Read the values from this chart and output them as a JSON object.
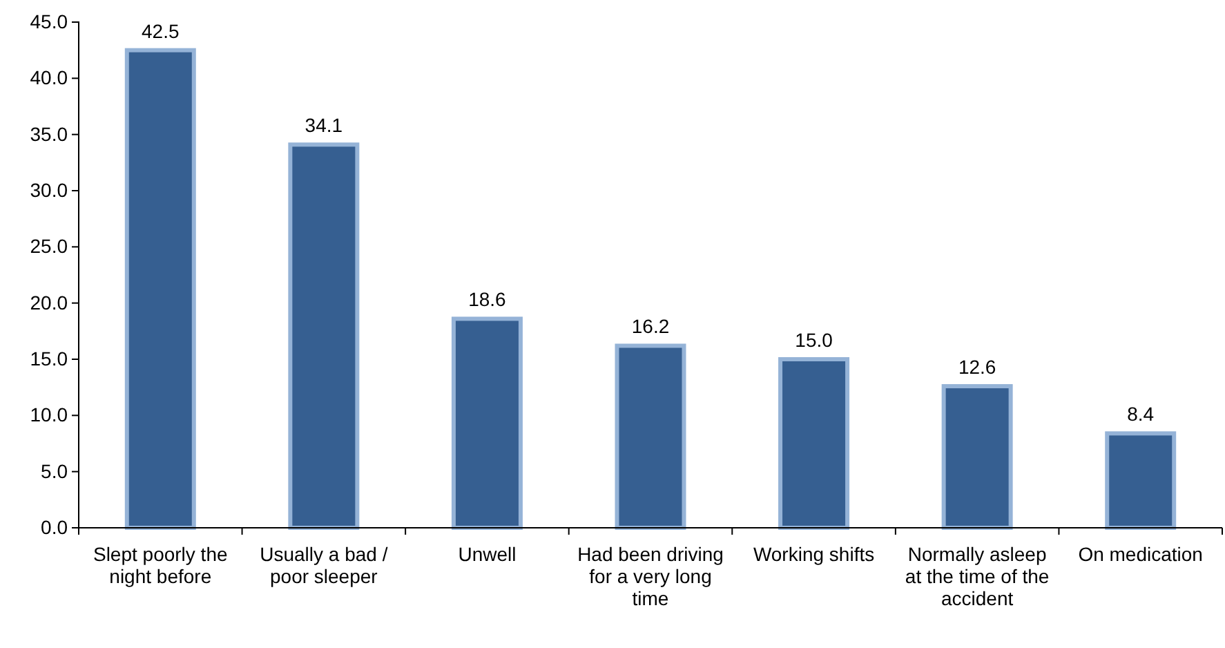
{
  "chart_data": {
    "type": "bar",
    "categories": [
      "Slept poorly the night before",
      "Usually a bad / poor sleeper",
      "Unwell",
      "Had been driving for a very long time",
      "Working shifts",
      "Normally asleep at the time of the accident",
      "On medication"
    ],
    "values": [
      42.5,
      34.1,
      18.6,
      16.2,
      15.0,
      12.6,
      8.4
    ],
    "value_labels": [
      "42.5",
      "34.1",
      "18.6",
      "16.2",
      "15.0",
      "12.6",
      "8.4"
    ],
    "color": "#365f91",
    "ylim": [
      0,
      45
    ],
    "yticks": [
      {
        "value": 0,
        "label": "0.0"
      },
      {
        "value": 5,
        "label": "5.0"
      },
      {
        "value": 10,
        "label": "10.0"
      },
      {
        "value": 15,
        "label": "15.0"
      },
      {
        "value": 20,
        "label": "20.0"
      },
      {
        "value": 25,
        "label": "25.0"
      },
      {
        "value": 30,
        "label": "30.0"
      },
      {
        "value": 35,
        "label": "35.0"
      },
      {
        "value": 40,
        "label": "40.0"
      },
      {
        "value": 45,
        "label": "45.0"
      }
    ],
    "grid": false
  }
}
